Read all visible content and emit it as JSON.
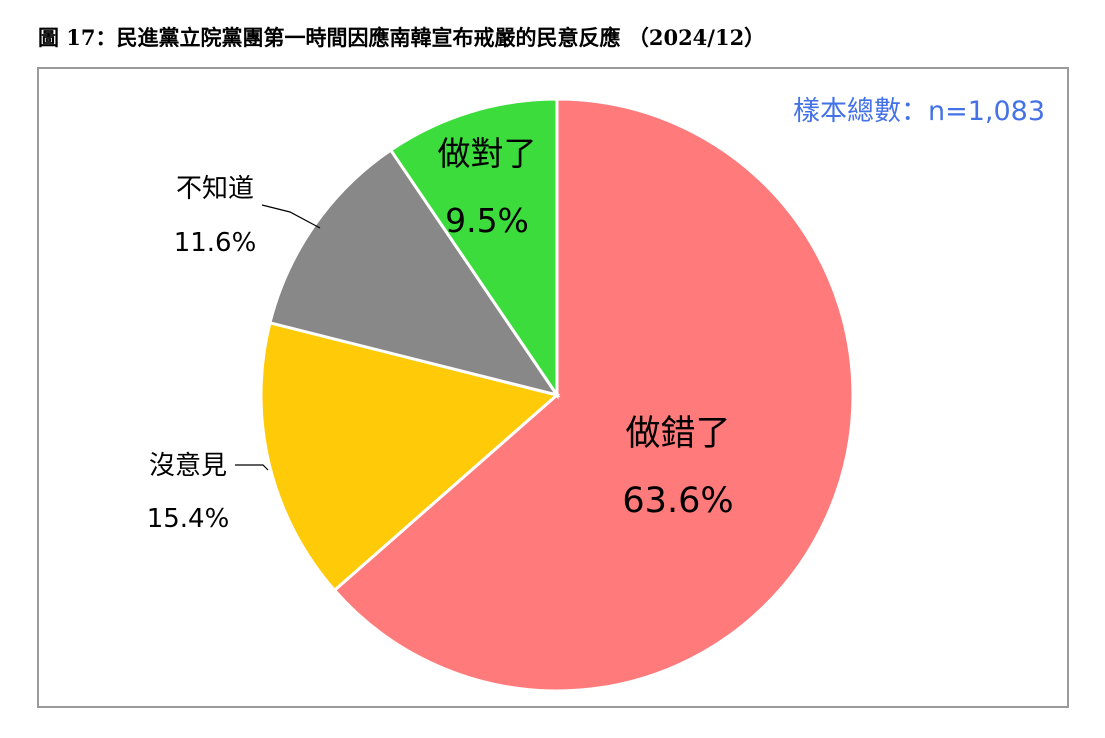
{
  "title": "圖 17：民進黨立院黨團第一時間因應南韓宣布戒嚴的民意反應 （2024/12）",
  "sample_note": "樣本總數：n=1,083",
  "colors": {
    "note": "#4472e6",
    "label": "#000000",
    "border": "#9a9a9a"
  },
  "chart_data": {
    "type": "pie",
    "slices": [
      {
        "label": "做錯了",
        "value": 63.6,
        "display": "63.6%",
        "color": "#ff7a7a"
      },
      {
        "label": "沒意見",
        "value": 15.4,
        "display": "15.4%",
        "color": "#ffca08"
      },
      {
        "label": "不知道",
        "value": 11.6,
        "display": "11.6%",
        "color": "#888888"
      },
      {
        "label": "做對了",
        "value": 9.5,
        "display": "9.5%",
        "color": "#3ddc3d"
      }
    ],
    "start": "12 o'clock",
    "direction": "clockwise",
    "legend": "none"
  }
}
